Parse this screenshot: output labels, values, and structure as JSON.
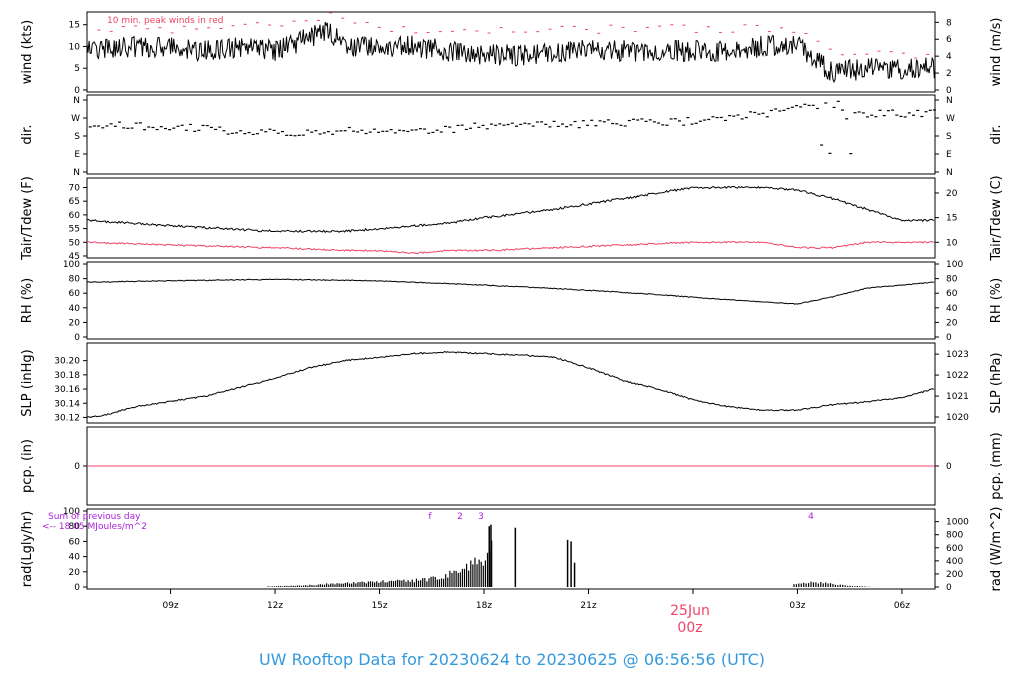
{
  "title": "UW Rooftop Data for 20230624  to  20230625 @ 06:56:56  (UTC)",
  "colors": {
    "title": "#3399dd",
    "red": "#ee4466",
    "purple": "#aa22dd",
    "line": "#000000"
  },
  "annotations": {
    "peak_note": "10 min. peak winds in red",
    "sum_line1": "Sum of previous day",
    "sum_line2": "<-- 18.05 MJoules/m^2",
    "date_label": "25Jun",
    "date_sub": "00z",
    "sun_markers": [
      "f",
      "2",
      "3",
      "4"
    ]
  },
  "chart_data": {
    "type": "line",
    "x_axis": {
      "unit": "hours since 2023-06-24 00z",
      "range": [
        6.6,
        30.95
      ],
      "ticks": [
        9,
        12,
        15,
        18,
        21,
        24,
        27,
        30
      ],
      "tick_labels": [
        "09z",
        "12z",
        "15z",
        "18z",
        "21z",
        "",
        "03z",
        "06z"
      ]
    },
    "panels": [
      {
        "name": "wind",
        "ylabel_left": "wind (kts)",
        "ylabel_right": "wind (m/s)",
        "ylim": [
          0,
          17
        ],
        "left_ticks": [
          0,
          5,
          10,
          15
        ],
        "right_ticks": [
          0,
          2,
          4,
          6,
          8
        ],
        "series": [
          {
            "name": "wind speed",
            "color": "#000000",
            "x": [
              6.6,
              8,
              9,
              10,
              11,
              12,
              13,
              13.5,
              14,
              15,
              16,
              17,
              18,
              19,
              20,
              21,
              22,
              23,
              24,
              25,
              26,
              27,
              28,
              29,
              30,
              30.9
            ],
            "values": [
              9,
              10,
              10,
              9,
              10,
              9,
              12,
              14,
              10,
              10,
              10,
              9,
              8,
              8,
              9,
              9,
              9,
              9,
              9,
              9,
              10,
              10,
              4,
              5,
              5,
              5
            ]
          },
          {
            "name": "10 min. peak winds",
            "color": "#ee4466",
            "x": [
              7,
              9,
              11,
              13,
              13.5,
              15,
              17,
              19,
              21,
              23,
              25,
              27,
              28,
              29,
              30.5
            ],
            "values": [
              14,
              14,
              15,
              16,
              17,
              14,
              14,
              14,
              14,
              14,
              14,
              14,
              8,
              8,
              8
            ]
          }
        ]
      },
      {
        "name": "direction",
        "ylabel_left": "dir.",
        "ylabel_right": "dir.",
        "ylim": [
          0,
          360
        ],
        "tick_labels": [
          "N",
          "W",
          "S",
          "E",
          "N"
        ],
        "series": [
          {
            "name": "wind direction",
            "x": [
              6.6,
              9,
              11,
              13,
              15,
              17,
              18,
              20,
              22,
              24,
              25,
              26,
              27,
              28,
              29,
              30.9
            ],
            "values": [
              232,
              228,
              205,
              200,
              205,
              215,
              235,
              240,
              245,
              255,
              270,
              290,
              320,
              330,
              290,
              295
            ]
          }
        ]
      },
      {
        "name": "temperature",
        "ylabel_left": "Tair/Tdew (F)",
        "ylabel_right": "Tair/Tdew (C)",
        "ylim": [
          45,
          72
        ],
        "left_ticks": [
          45,
          50,
          55,
          60,
          65,
          70
        ],
        "right_ticks": [
          10,
          15,
          20
        ],
        "series": [
          {
            "name": "Tair",
            "color": "#000000",
            "x": [
              6.6,
              9,
              12,
              14,
              15,
              17,
              18,
              20,
              22,
              24,
              26,
              27,
              28,
              29,
              30,
              30.9
            ],
            "values": [
              58,
              56,
              54,
              54,
              55,
              57,
              59,
              62,
              66,
              70,
              70,
              69,
              66,
              62,
              58,
              58
            ]
          },
          {
            "name": "Tdew",
            "color": "#ee4466",
            "x": [
              6.6,
              9,
              12,
              14,
              15,
              16,
              17,
              18,
              20,
              22,
              24,
              26,
              27,
              28,
              29,
              30.9
            ],
            "values": [
              50,
              49,
              48,
              47,
              47,
              46,
              47,
              47,
              48,
              49,
              50,
              50,
              48,
              48,
              50,
              50
            ]
          }
        ]
      },
      {
        "name": "rh",
        "ylabel_left": "RH (%)",
        "ylabel_right": "RH (%)",
        "ylim": [
          0,
          100
        ],
        "left_ticks": [
          0,
          20,
          40,
          60,
          80,
          100
        ],
        "right_ticks": [
          0,
          20,
          40,
          60,
          80,
          100
        ],
        "series": [
          {
            "name": "RH",
            "x": [
              6.6,
              9,
              12,
              15,
              17,
              19,
              21,
              23,
              25,
              26,
              27,
              28,
              29,
              30.9
            ],
            "values": [
              75,
              77,
              79,
              77,
              73,
              69,
              64,
              58,
              51,
              48,
              45,
              55,
              67,
              75
            ]
          }
        ]
      },
      {
        "name": "slp",
        "ylabel_left": "SLP (inHg)",
        "ylabel_right": "SLP (hPa)",
        "ylim": [
          30.115,
          30.215
        ],
        "left_ticks": [
          30.12,
          30.14,
          30.16,
          30.18,
          30.2
        ],
        "left_tick_labels": [
          "30.12",
          "30.14",
          "30.16",
          "30.18",
          "30.20"
        ],
        "right_ticks_hpa": [
          1020,
          1021,
          1022,
          1023
        ],
        "series": [
          {
            "name": "SLP",
            "x": [
              6.6,
              7,
              8,
              10,
              12,
              13,
              14,
              15,
              16,
              17,
              18,
              19,
              20,
              21,
              22,
              23,
              24,
              25,
              26,
              27,
              28,
              29,
              30,
              30.9
            ],
            "values": [
              30.12,
              30.122,
              30.135,
              30.15,
              30.175,
              30.19,
              30.2,
              30.205,
              30.21,
              30.212,
              30.21,
              30.208,
              30.205,
              30.19,
              30.172,
              30.16,
              30.145,
              30.135,
              30.13,
              30.13,
              30.138,
              30.142,
              30.148,
              30.16
            ]
          }
        ]
      },
      {
        "name": "precip",
        "ylabel_left": "pcp. (in)",
        "ylabel_right": "pcp. (mm)",
        "left_ticks": [
          0
        ],
        "right_ticks": [
          0
        ],
        "series": [
          {
            "name": "precip",
            "color": "#ee4466",
            "x": [
              6.6,
              30.95
            ],
            "values": [
              0,
              0
            ]
          }
        ]
      },
      {
        "name": "radiation",
        "ylabel_left": "rad(Lgly/hr)",
        "ylabel_right": "rad (W/m^2)",
        "ylim": [
          0,
          100
        ],
        "left_ticks": [
          0,
          20,
          40,
          60,
          80,
          100
        ],
        "right_ticks": [
          0,
          200,
          400,
          600,
          800,
          1000
        ],
        "type": "bar",
        "x": [
          11.8,
          12.5,
          13,
          13.5,
          14,
          14.5,
          15,
          15.5,
          16,
          16.5,
          17,
          17.5,
          18,
          18.2,
          18.9,
          20.4,
          20.5,
          20.6,
          27.0,
          27.5,
          28.0,
          28.5,
          29.0
        ],
        "values": [
          1,
          2,
          3,
          5,
          6,
          8,
          9,
          10,
          11,
          14,
          22,
          35,
          45,
          82,
          78,
          62,
          60,
          32,
          7,
          8,
          5,
          2,
          1
        ]
      }
    ]
  }
}
